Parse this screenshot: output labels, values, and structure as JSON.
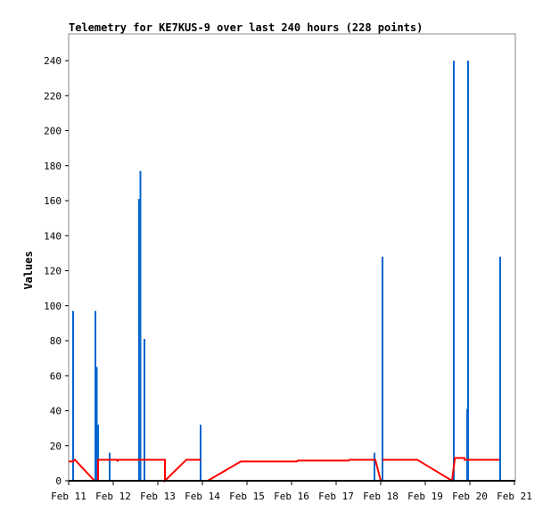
{
  "chart_data": {
    "type": "bar",
    "title": "Telemetry for KE7KUS-9 over last 240 hours (228 points)",
    "ylabel": "Values",
    "xlabel": "",
    "ylim": [
      0,
      255
    ],
    "xlim_days": [
      0,
      10
    ],
    "x_unit": "days since Feb 11",
    "y_ticks": [
      0,
      20,
      40,
      60,
      80,
      100,
      120,
      140,
      160,
      180,
      200,
      220,
      240
    ],
    "x_ticks": [
      "Feb 11",
      "Feb 12",
      "Feb 13",
      "Feb 14",
      "Feb 15",
      "Feb 16",
      "Feb 17",
      "Feb 18",
      "Feb 19",
      "Feb 20",
      "Feb 21"
    ],
    "bars": {
      "color": "#0066cc",
      "points": [
        [
          0.1,
          97
        ],
        [
          0.6,
          97
        ],
        [
          0.63,
          65
        ],
        [
          0.66,
          32
        ],
        [
          0.92,
          16
        ],
        [
          1.58,
          161
        ],
        [
          1.61,
          177
        ],
        [
          1.7,
          81
        ],
        [
          2.96,
          32
        ],
        [
          6.86,
          16
        ],
        [
          7.04,
          128
        ],
        [
          8.64,
          240
        ],
        [
          8.94,
          41
        ],
        [
          8.96,
          240
        ],
        [
          9.68,
          128
        ]
      ]
    },
    "line": {
      "color": "#ff0000",
      "segments": [
        [
          [
            0,
            11
          ],
          [
            0.1,
            11
          ],
          [
            0.14,
            12
          ],
          [
            0.58,
            0
          ],
          [
            0.66,
            0
          ],
          [
            0.66,
            12
          ],
          [
            1.08,
            12
          ],
          [
            1.1,
            11
          ],
          [
            1.1,
            12
          ],
          [
            2.16,
            12
          ],
          [
            2.16,
            0
          ],
          [
            2.64,
            12
          ],
          [
            2.96,
            12
          ]
        ],
        [
          [
            3.12,
            0
          ],
          [
            3.86,
            11
          ],
          [
            5.12,
            11
          ],
          [
            5.14,
            11.5
          ],
          [
            6.28,
            11.5
          ],
          [
            6.3,
            12
          ],
          [
            6.88,
            12
          ],
          [
            7.0,
            0
          ]
        ],
        [
          [
            7.04,
            12
          ],
          [
            7.82,
            12
          ],
          [
            8.6,
            0
          ],
          [
            8.66,
            12
          ],
          [
            8.66,
            13
          ],
          [
            8.88,
            13
          ],
          [
            8.88,
            12
          ],
          [
            9.66,
            12
          ]
        ]
      ]
    }
  }
}
